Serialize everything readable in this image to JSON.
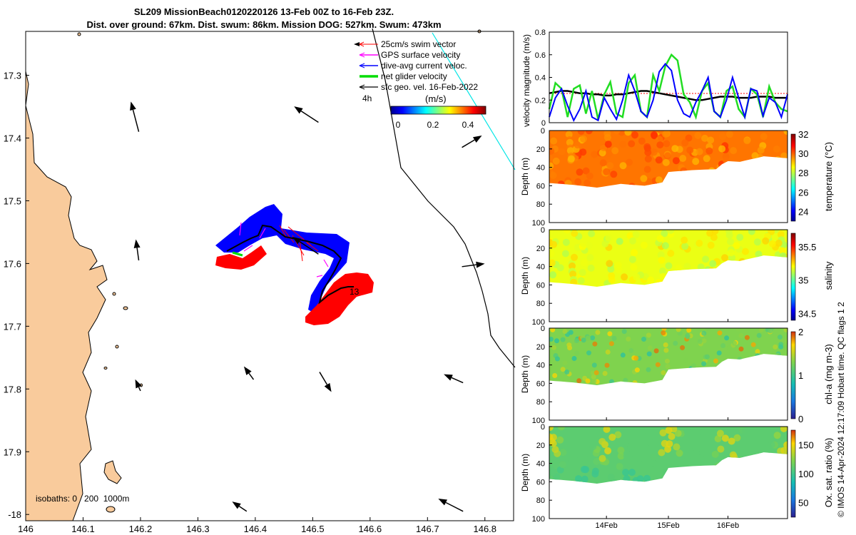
{
  "title": {
    "line1": "SL209 MissionBeach0120220126 13-Feb 00Z to 16-Feb 23Z.",
    "line2": "Dist. over ground: 67km. Dist. swum: 86km. Mission DOG: 527km. Swum: 473km"
  },
  "credit": "© IMOS 14-Apr-2024 12:17:09 Hobart time. QC flags 1  2",
  "colors": {
    "land": "#F9CB9C",
    "swim": "#FF0000",
    "gps": "#FF00FF",
    "current": "#0000FF",
    "glider": "#00DD00",
    "geo": "#000000",
    "track_ext": "#00E5E5"
  },
  "chart_data": [
    {
      "type": "map",
      "xticks": [
        "146",
        "146.1",
        "146.2",
        "146.3",
        "146.4",
        "146.5",
        "146.6",
        "146.7",
        "146.8"
      ],
      "yticks": [
        "17.3",
        "17.4",
        "17.5",
        "17.6",
        "17.7",
        "17.8",
        "17.9",
        "-18"
      ],
      "xlim": [
        146,
        146.85
      ],
      "ylim": [
        -17.23,
        -18.01
      ],
      "legend": [
        "25cm/s swim vector",
        "GPS surface velocity",
        "dive-avg current veloc.",
        "net glider velocity",
        "sfc geo. vel. 16-Feb-2022"
      ],
      "scale_label": "4h",
      "colorbar": {
        "label": "(m/s)",
        "ticks": [
          "0",
          "0.2",
          "0.4"
        ],
        "range": [
          0,
          0.5
        ]
      },
      "isobath_label": "isobaths: 0   200  1000m",
      "track_label": "13",
      "geo_vectors": [
        {
          "lon": 146.197,
          "lat": -17.39,
          "dlon": -0.01,
          "dlat": 0.035
        },
        {
          "lon": 146.51,
          "lat": -17.375,
          "dlon": -0.03,
          "dlat": 0.018
        },
        {
          "lon": 146.76,
          "lat": -17.415,
          "dlon": 0.022,
          "dlat": 0.012
        },
        {
          "lon": 146.197,
          "lat": -17.595,
          "dlon": -0.003,
          "dlat": 0.02
        },
        {
          "lon": 146.51,
          "lat": -17.585,
          "dlon": -0.033,
          "dlat": 0.02
        },
        {
          "lon": 146.76,
          "lat": -17.605,
          "dlon": 0.025,
          "dlat": 0.003
        },
        {
          "lon": 146.397,
          "lat": -17.785,
          "dlon": -0.008,
          "dlat": 0.01
        },
        {
          "lon": 146.512,
          "lat": -17.773,
          "dlon": 0.013,
          "dlat": -0.02
        },
        {
          "lon": 146.762,
          "lat": -17.79,
          "dlon": -0.02,
          "dlat": 0.008
        },
        {
          "lon": 146.2,
          "lat": -17.803,
          "dlon": -0.003,
          "dlat": 0.006
        },
        {
          "lon": 146.385,
          "lat": -17.995,
          "dlon": -0.013,
          "dlat": 0.008
        },
        {
          "lon": 146.762,
          "lat": -17.995,
          "dlon": -0.03,
          "dlat": 0.014
        }
      ]
    },
    {
      "type": "line",
      "ylabel": "velocity magnitude (m/s)",
      "ylim": [
        0,
        0.8
      ],
      "yticks": [
        "0",
        "0.2",
        "0.4",
        "0.6",
        "0.8"
      ],
      "series": [
        {
          "name": "net glider velocity",
          "values": [
            0.12,
            0.35,
            0.3,
            0.05,
            0.3,
            0.33,
            0.08,
            0.28,
            0.03,
            0.25,
            0.36,
            0.08,
            0.05,
            0.35,
            0.42,
            0.1,
            0.05,
            0.42,
            0.28,
            0.5,
            0.6,
            0.55,
            0.25,
            0.18,
            0.05,
            0.28,
            0.35,
            0.1,
            0.05,
            0.28,
            0.32,
            0.12,
            0.05,
            0.3,
            0.25,
            0.05,
            0.32,
            0.18,
            0.12,
            0.1
          ]
        },
        {
          "name": "dive-avg current",
          "values": [
            0.05,
            0.22,
            0.3,
            0.15,
            0.02,
            0.12,
            0.28,
            0.05,
            0.02,
            0.22,
            0.12,
            0.03,
            0.2,
            0.42,
            0.28,
            0.1,
            0.05,
            0.2,
            0.45,
            0.52,
            0.46,
            0.2,
            0.08,
            0.05,
            0.18,
            0.28,
            0.4,
            0.1,
            0.05,
            0.2,
            0.4,
            0.22,
            0.05,
            0.3,
            0.28,
            0.06,
            0.22,
            0.18,
            0.05,
            0.25
          ]
        },
        {
          "name": "geostrophic",
          "values": [
            0.26,
            0.27,
            0.28,
            0.28,
            0.27,
            0.26,
            0.26,
            0.25,
            0.25,
            0.24,
            0.24,
            0.25,
            0.25,
            0.26,
            0.27,
            0.28,
            0.28,
            0.27,
            0.26,
            0.25,
            0.24,
            0.23,
            0.22,
            0.21,
            0.2,
            0.2,
            0.21,
            0.22,
            0.23,
            0.23,
            0.23,
            0.22,
            0.22,
            0.22,
            0.23,
            0.23,
            0.23,
            0.22,
            0.22,
            0.22
          ]
        }
      ],
      "xticks": [
        "14Feb",
        "15Feb",
        "16Feb"
      ]
    },
    {
      "type": "heatmap",
      "variable": "temperature",
      "colorbar_label": "temperature (°C)",
      "ylabel": "Depth (m)",
      "cticks": [
        "24",
        "26",
        "28",
        "30",
        "32"
      ],
      "range": [
        23,
        32
      ],
      "typical": 29.8,
      "yticks": [
        "0",
        "20",
        "40",
        "60",
        "80",
        "100"
      ],
      "ylim": [
        0,
        100
      ]
    },
    {
      "type": "heatmap",
      "variable": "salinity",
      "colorbar_label": "salinity",
      "ylabel": "Depth (m)",
      "cticks": [
        "34.5",
        "35",
        "35.5"
      ],
      "range": [
        34.4,
        35.7
      ],
      "typical": 35.18,
      "yticks": [
        "0",
        "20",
        "40",
        "60",
        "80",
        "100"
      ],
      "ylim": [
        0,
        100
      ]
    },
    {
      "type": "heatmap",
      "variable": "chlorophyll",
      "colorbar_label": "chl-a (mg m-3)",
      "ylabel": "Depth (m)",
      "cticks": [
        "0",
        "1",
        "2"
      ],
      "range": [
        0,
        2
      ],
      "typical": 1.3,
      "yticks": [
        "0",
        "20",
        "40",
        "60",
        "80",
        "100"
      ],
      "ylim": [
        0,
        100
      ]
    },
    {
      "type": "heatmap",
      "variable": "oxygen",
      "colorbar_label": "Ox. sat. ratio (%)",
      "ylabel": "Depth (m)",
      "cticks": [
        "50",
        "100",
        "150"
      ],
      "range": [
        25,
        175
      ],
      "typical": 110,
      "yticks": [
        "0",
        "20",
        "40",
        "60",
        "80",
        "100"
      ],
      "ylim": [
        0,
        100
      ],
      "xticks": [
        "14Feb",
        "15Feb",
        "16Feb"
      ]
    }
  ]
}
